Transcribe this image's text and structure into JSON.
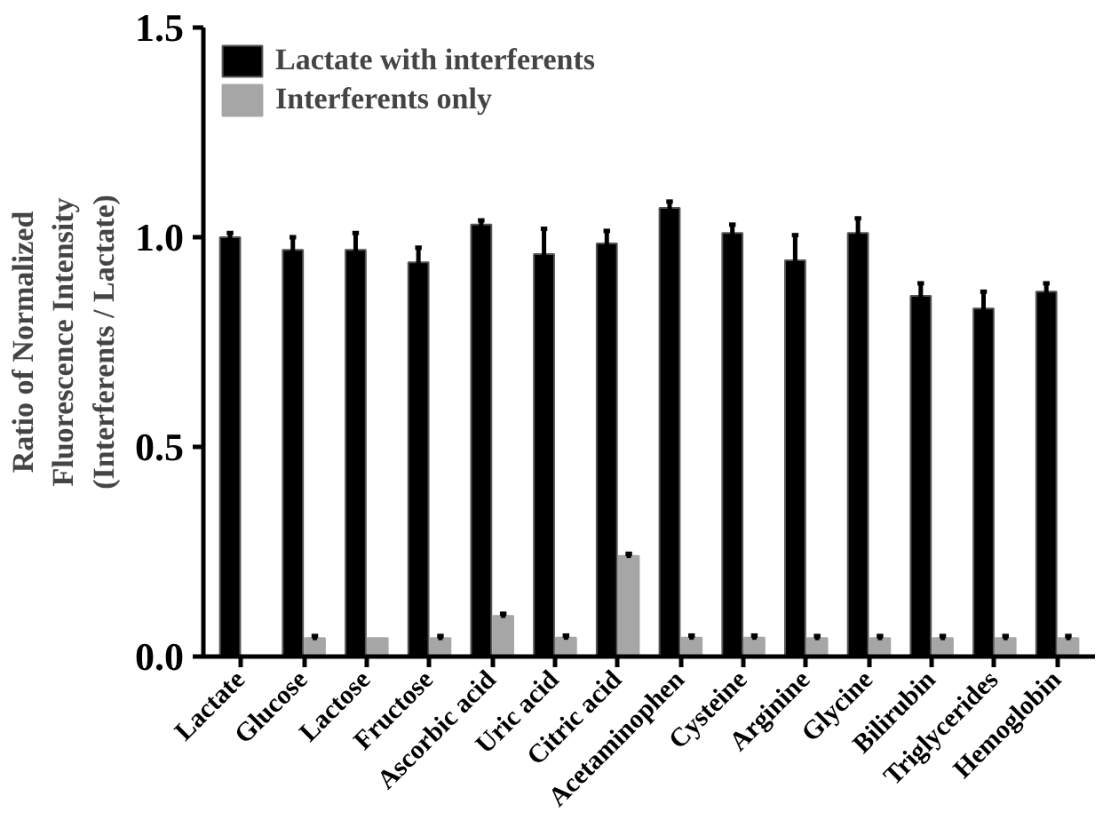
{
  "chart_data": {
    "type": "bar",
    "ylabel": "Ratio of Normalized\nFluorescence Intensity\n(Interferents / Lactate)",
    "categories": [
      "Lactate",
      "Glucose",
      "Lactose",
      "Fructose",
      "Ascorbic acid",
      "Uric acid",
      "Citric acid",
      "Acetaminophen",
      "Cysteine",
      "Arginine",
      "Glycine",
      "Bilirubin",
      "Triglycerides",
      "Hemoglobin"
    ],
    "series": [
      {
        "name": "Lactate with interferents",
        "color": "#000000",
        "values": [
          1.0,
          0.97,
          0.97,
          0.94,
          1.03,
          0.96,
          0.985,
          1.07,
          1.01,
          0.945,
          1.01,
          0.86,
          0.83,
          0.87
        ],
        "errors": [
          0.01,
          0.03,
          0.04,
          0.035,
          0.01,
          0.06,
          0.03,
          0.015,
          0.02,
          0.06,
          0.035,
          0.03,
          0.04,
          0.02
        ]
      },
      {
        "name": "Interferents only",
        "color": "#a6a6a6",
        "values": [
          null,
          0.044,
          0.044,
          0.044,
          0.097,
          0.045,
          0.24,
          0.045,
          0.045,
          0.044,
          0.044,
          0.044,
          0.044,
          0.044
        ],
        "errors": [
          null,
          0.005,
          null,
          0.005,
          0.005,
          0.005,
          0.005,
          0.005,
          0.005,
          0.005,
          0.005,
          0.005,
          0.005,
          0.005
        ]
      }
    ],
    "ylim": [
      0,
      1.5
    ],
    "yticks": [
      {
        "value": 0,
        "label": "0.0"
      },
      {
        "value": 0.5,
        "label": "0.5"
      },
      {
        "value": 1,
        "label": "1.0"
      },
      {
        "value": 1.5,
        "label": "1.5"
      }
    ],
    "grid": false,
    "legend": "top left"
  }
}
